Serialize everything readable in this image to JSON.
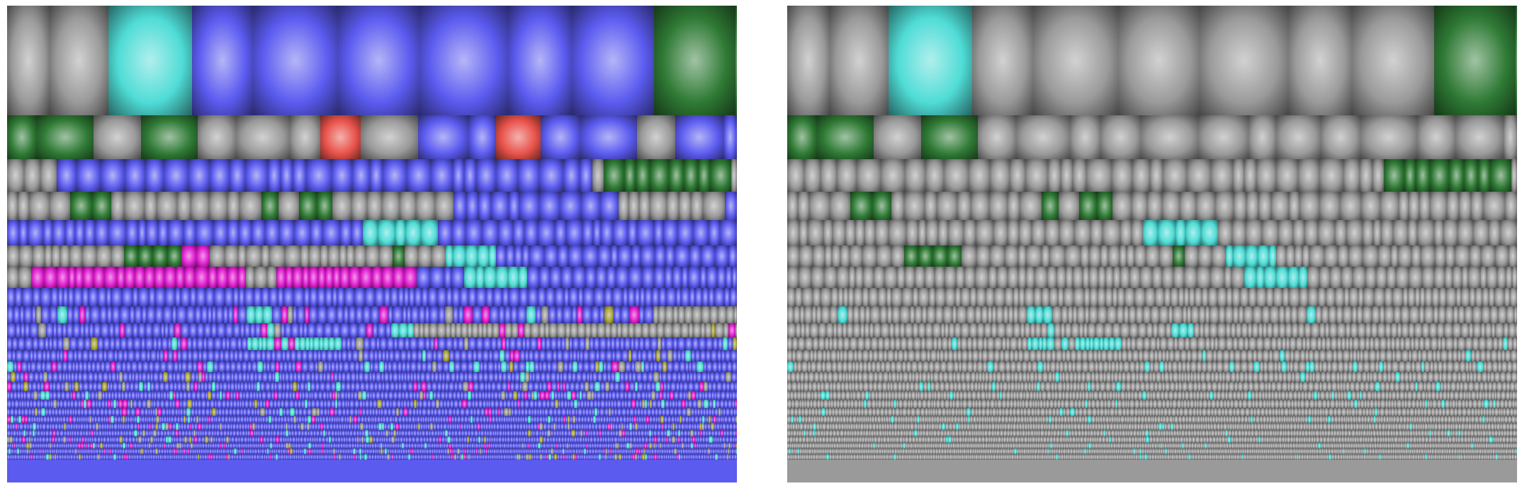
{
  "view": {
    "panels": [
      {
        "id": "left",
        "mode": "colored"
      },
      {
        "id": "right",
        "mode": "highlight"
      }
    ],
    "palette": {
      "blue": "#5b5bf0",
      "gray": "#9a9a9a",
      "green": "#2f7a35",
      "cyan": "#4fdcd6",
      "red": "#e8524a",
      "magenta": "#e020d0",
      "olive": "#a9a43a",
      "light": "#d7d7d7"
    },
    "highlight_colors": [
      "green",
      "cyan"
    ]
  }
}
